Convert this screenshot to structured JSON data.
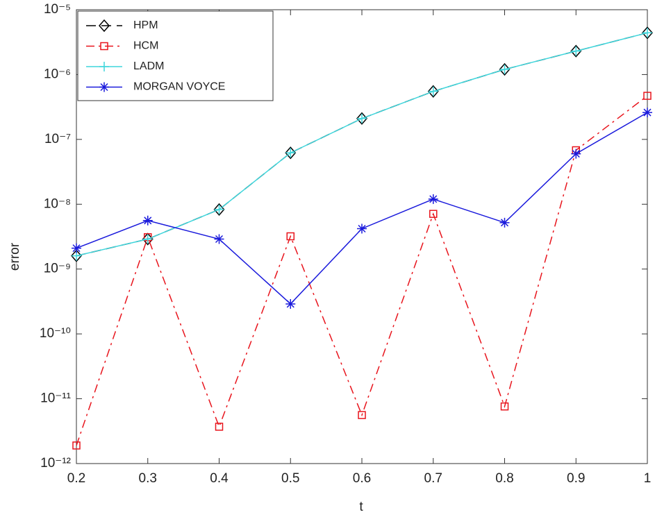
{
  "chart_data": {
    "type": "line",
    "xlabel": "t",
    "ylabel": "error",
    "x": [
      0.2,
      0.3,
      0.4,
      0.5,
      0.6,
      0.7,
      0.8,
      0.9,
      1
    ],
    "series": [
      {
        "name": "HPM",
        "color": "#000000",
        "dash": "dashed",
        "marker": "diamond",
        "values": [
          1.6e-09,
          2.9e-09,
          8.3e-09,
          6.2e-08,
          2.1e-07,
          5.5e-07,
          1.2e-06,
          2.3e-06,
          4.4e-06
        ]
      },
      {
        "name": "HCM",
        "color": "#e8141c",
        "dash": "dashdot",
        "marker": "square",
        "values": [
          1.9e-12,
          3.1e-09,
          3.7e-12,
          3.2e-09,
          5.6e-12,
          7.1e-09,
          7.6e-12,
          6.8e-08,
          4.7e-07
        ]
      },
      {
        "name": "LADM",
        "color": "#3fd6dc",
        "dash": "solid",
        "marker": "plus",
        "values": [
          1.6e-09,
          2.9e-09,
          8.3e-09,
          6.2e-08,
          2.1e-07,
          5.5e-07,
          1.2e-06,
          2.3e-06,
          4.4e-06
        ]
      },
      {
        "name": "MORGAN VOYCE",
        "color": "#1a1adc",
        "dash": "solid",
        "marker": "asterisk",
        "values": [
          2.1e-09,
          5.6e-09,
          2.9e-09,
          2.9e-10,
          4.2e-09,
          1.2e-08,
          5.2e-09,
          6e-08,
          2.6e-07
        ]
      }
    ],
    "xlim": [
      0.2,
      1
    ],
    "xticks": [
      0.2,
      0.3,
      0.4,
      0.5,
      0.6,
      0.7,
      0.8,
      0.9,
      1
    ],
    "ylim": [
      1e-12,
      1e-05
    ],
    "yscale": "log",
    "yticks": [
      {
        "value": 1e-12,
        "label": "10⁻¹²"
      },
      {
        "value": 1e-11,
        "label": "10⁻¹¹"
      },
      {
        "value": 1e-10,
        "label": "10⁻¹⁰"
      },
      {
        "value": 1e-09,
        "label": "10⁻⁹"
      },
      {
        "value": 1e-08,
        "label": "10⁻⁸"
      },
      {
        "value": 1e-07,
        "label": "10⁻⁷"
      },
      {
        "value": 1e-06,
        "label": "10⁻⁶"
      },
      {
        "value": 1e-05,
        "label": "10⁻⁵"
      }
    ],
    "legend": "upper left",
    "grid": false
  }
}
